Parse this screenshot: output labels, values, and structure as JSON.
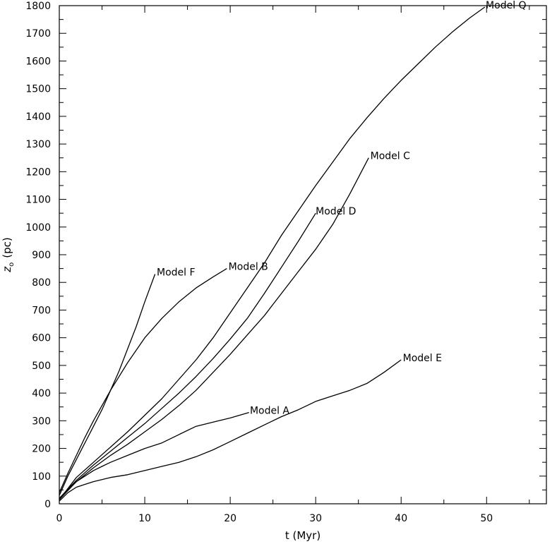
{
  "chart_data": {
    "type": "line",
    "xlabel": "t  (Myr)",
    "ylabel": "z",
    "ylabel_subscript": "o",
    "ylabel_units": "(pc)",
    "xlim": [
      0,
      57
    ],
    "ylim": [
      0,
      1800
    ],
    "xticks": [
      0,
      10,
      20,
      30,
      40,
      50
    ],
    "yticks": [
      0,
      100,
      200,
      300,
      400,
      500,
      600,
      700,
      800,
      900,
      1000,
      1100,
      1200,
      1300,
      1400,
      1500,
      1600,
      1700,
      1800
    ],
    "grid": false,
    "series": [
      {
        "name": "Model A",
        "x": [
          0,
          1,
          2,
          3,
          4,
          5,
          6,
          8,
          10,
          12,
          14,
          16,
          18,
          20,
          22.2
        ],
        "y": [
          15,
          50,
          80,
          100,
          120,
          135,
          150,
          175,
          200,
          220,
          250,
          280,
          295,
          310,
          330
        ]
      },
      {
        "name": "Model B",
        "x": [
          0,
          1,
          2,
          3,
          4,
          6,
          8,
          10,
          12,
          14,
          16,
          18,
          19.6
        ],
        "y": [
          40,
          110,
          175,
          240,
          300,
          410,
          510,
          600,
          670,
          730,
          780,
          820,
          850
        ]
      },
      {
        "name": "Model C",
        "x": [
          0,
          2,
          4,
          6,
          8,
          10,
          12,
          14,
          16,
          18,
          20,
          22,
          24,
          26,
          28,
          30,
          32,
          34,
          36.2
        ],
        "y": [
          15,
          80,
          130,
          175,
          215,
          260,
          305,
          355,
          410,
          475,
          540,
          610,
          680,
          760,
          840,
          920,
          1010,
          1120,
          1250
        ]
      },
      {
        "name": "Model D",
        "x": [
          0,
          2,
          4,
          6,
          8,
          10,
          12,
          14,
          16,
          18,
          20,
          22,
          24,
          26,
          28,
          30
        ],
        "y": [
          20,
          85,
          140,
          190,
          240,
          290,
          345,
          400,
          460,
          525,
          595,
          670,
          760,
          855,
          950,
          1050
        ]
      },
      {
        "name": "Model E",
        "x": [
          0,
          1,
          2,
          3,
          4,
          6,
          8,
          10,
          12,
          14,
          16,
          18,
          20,
          22,
          24,
          26,
          28,
          30,
          32,
          34,
          36,
          38,
          40
        ],
        "y": [
          10,
          40,
          60,
          70,
          80,
          95,
          105,
          120,
          135,
          150,
          170,
          195,
          225,
          255,
          285,
          315,
          340,
          370,
          390,
          410,
          435,
          475,
          520
        ]
      },
      {
        "name": "Model F",
        "x": [
          0,
          1,
          2,
          3,
          4,
          5,
          6,
          7,
          8,
          9,
          10,
          11.2
        ],
        "y": [
          30,
          100,
          160,
          220,
          280,
          340,
          410,
          480,
          560,
          640,
          730,
          830
        ]
      },
      {
        "name": "Model Q",
        "x": [
          0,
          2,
          4,
          6,
          8,
          10,
          12,
          14,
          16,
          18,
          20,
          22,
          24,
          26,
          28,
          30,
          32,
          34,
          36,
          38,
          40,
          42,
          44,
          46,
          48,
          49.8
        ],
        "y": [
          15,
          95,
          150,
          205,
          260,
          320,
          380,
          450,
          520,
          600,
          690,
          780,
          870,
          970,
          1060,
          1150,
          1235,
          1320,
          1395,
          1465,
          1530,
          1590,
          1650,
          1705,
          1755,
          1795
        ]
      }
    ],
    "labels": [
      {
        "series": "Model A",
        "text": "Model A",
        "x": 22.3,
        "y": 330
      },
      {
        "series": "Model B",
        "text": "Model B",
        "x": 19.8,
        "y": 850
      },
      {
        "series": "Model C",
        "text": "Model C",
        "x": 36.4,
        "y": 1250
      },
      {
        "series": "Model D",
        "text": "Model D",
        "x": 30.0,
        "y": 1050
      },
      {
        "series": "Model E",
        "text": "Model E",
        "x": 40.2,
        "y": 520
      },
      {
        "series": "Model F",
        "text": "Model F",
        "x": 11.4,
        "y": 830
      },
      {
        "series": "Model Q",
        "text": "Model Q",
        "x": 49.9,
        "y": 1795
      }
    ]
  }
}
